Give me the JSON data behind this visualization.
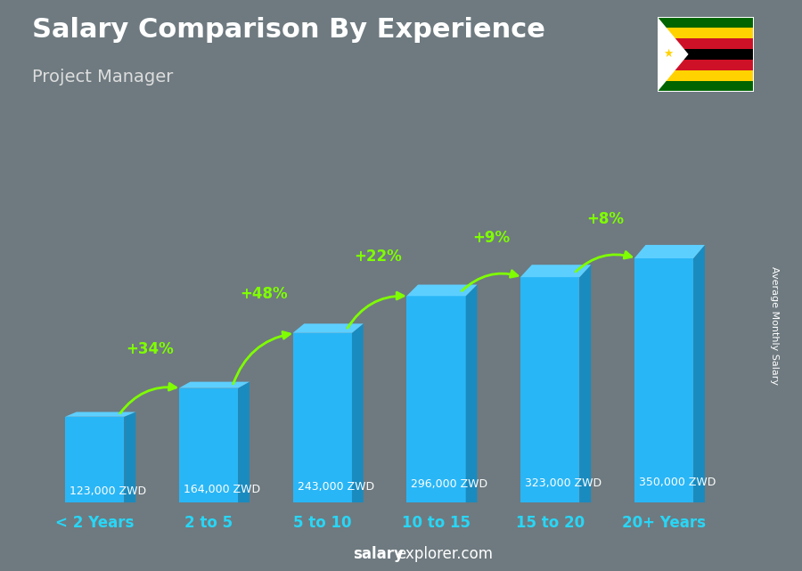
{
  "title": "Salary Comparison By Experience",
  "subtitle": "Project Manager",
  "categories": [
    "< 2 Years",
    "2 to 5",
    "5 to 10",
    "10 to 15",
    "15 to 20",
    "20+ Years"
  ],
  "values": [
    123000,
    164000,
    243000,
    296000,
    323000,
    350000
  ],
  "labels": [
    "123,000 ZWD",
    "164,000 ZWD",
    "243,000 ZWD",
    "296,000 ZWD",
    "323,000 ZWD",
    "350,000 ZWD"
  ],
  "pct_changes": [
    null,
    "+34%",
    "+48%",
    "+22%",
    "+9%",
    "+8%"
  ],
  "bar_color_face": "#29b6f6",
  "bar_color_side": "#1a8bbf",
  "bar_color_top": "#5dcfff",
  "background_color": "#6e7a80",
  "title_color": "#ffffff",
  "subtitle_color": "#dddddd",
  "label_color": "#ffffff",
  "pct_color": "#7fff00",
  "xlabel_color": "#29d6f6",
  "watermark_bold": "salary",
  "watermark_normal": "explorer.com",
  "ylabel_text": "Average Monthly Salary",
  "ylabel_color": "#ffffff",
  "figsize": [
    9.0,
    6.41
  ],
  "dpi": 100
}
